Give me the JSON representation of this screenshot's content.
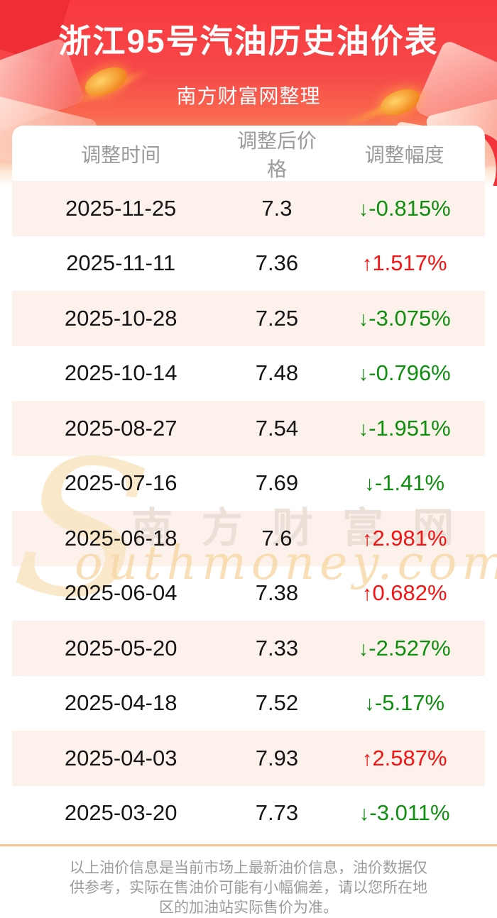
{
  "header": {
    "title": "浙江95号汽油历史油价表",
    "subtitle": "南方财富网整理"
  },
  "table": {
    "columns": [
      "调整时间",
      "调整后价格",
      "调整幅度"
    ],
    "rows": [
      {
        "date": "2025-11-25",
        "price": "7.3",
        "change": "-0.815%",
        "direction": "down"
      },
      {
        "date": "2025-11-11",
        "price": "7.36",
        "change": "1.517%",
        "direction": "up"
      },
      {
        "date": "2025-10-28",
        "price": "7.25",
        "change": "-3.075%",
        "direction": "down"
      },
      {
        "date": "2025-10-14",
        "price": "7.48",
        "change": "-0.796%",
        "direction": "down"
      },
      {
        "date": "2025-08-27",
        "price": "7.54",
        "change": "-1.951%",
        "direction": "down"
      },
      {
        "date": "2025-07-16",
        "price": "7.69",
        "change": "-1.41%",
        "direction": "down"
      },
      {
        "date": "2025-06-18",
        "price": "7.6",
        "change": "2.981%",
        "direction": "up"
      },
      {
        "date": "2025-06-04",
        "price": "7.38",
        "change": "0.682%",
        "direction": "up"
      },
      {
        "date": "2025-05-20",
        "price": "7.33",
        "change": "-2.527%",
        "direction": "down"
      },
      {
        "date": "2025-04-18",
        "price": "7.52",
        "change": "-5.17%",
        "direction": "down"
      },
      {
        "date": "2025-04-03",
        "price": "7.93",
        "change": "2.587%",
        "direction": "up"
      },
      {
        "date": "2025-03-20",
        "price": "7.73",
        "change": "-3.011%",
        "direction": "down"
      }
    ]
  },
  "icons": {
    "down_arrow": "↓",
    "up_arrow": "↑"
  },
  "watermark": {
    "s": "S",
    "cn": "南方财富网",
    "en": "outhmoney.com"
  },
  "footer": {
    "disclaimer": "以上油价信息是当前市场上最新油价信息，油价数据仅供参考，实际在售油价可能有小幅偏差，请以您所在地区的加油站实际售价为准。"
  },
  "colors": {
    "accent_red": "#f93b3f",
    "up_red": "#f41414",
    "down_green": "#0f8f0f",
    "row_alt_bg": "#fdf2eb",
    "divider_orange": "#f6c88f",
    "watermark_orange": "#f8d8a6"
  },
  "chart_data": {
    "type": "table",
    "title": "浙江95号汽油历史油价表",
    "subtitle": "南方财富网整理",
    "columns": [
      "调整时间",
      "调整后价格",
      "调整幅度"
    ],
    "rows": [
      [
        "2025-11-25",
        7.3,
        "-0.815%"
      ],
      [
        "2025-11-11",
        7.36,
        "+1.517%"
      ],
      [
        "2025-10-28",
        7.25,
        "-3.075%"
      ],
      [
        "2025-10-14",
        7.48,
        "-0.796%"
      ],
      [
        "2025-08-27",
        7.54,
        "-1.951%"
      ],
      [
        "2025-07-16",
        7.69,
        "-1.41%"
      ],
      [
        "2025-06-18",
        7.6,
        "+2.981%"
      ],
      [
        "2025-06-04",
        7.38,
        "+0.682%"
      ],
      [
        "2025-05-20",
        7.33,
        "-2.527%"
      ],
      [
        "2025-04-18",
        7.52,
        "-5.17%"
      ],
      [
        "2025-04-03",
        7.93,
        "+2.587%"
      ],
      [
        "2025-03-20",
        7.73,
        "-3.011%"
      ]
    ]
  }
}
